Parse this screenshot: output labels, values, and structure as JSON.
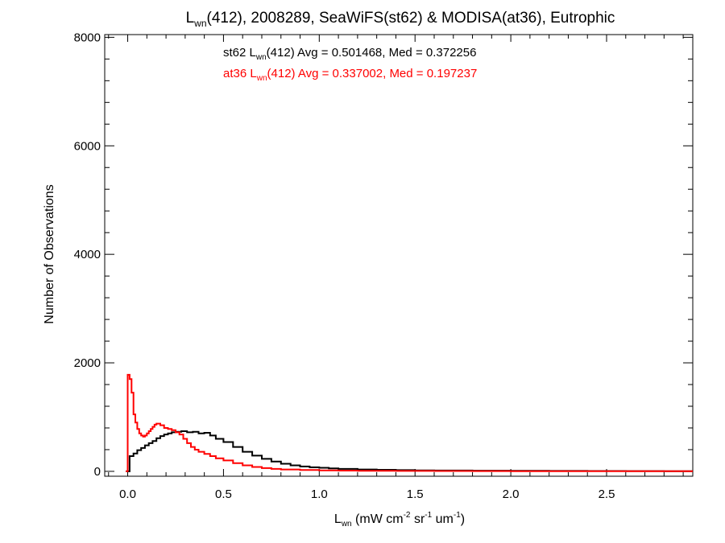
{
  "chart_data": {
    "type": "line",
    "title": {
      "main": "L",
      "sub": "wn",
      "rest": "(412), 2008289, SeaWiFS(st62) & MODISA(at36), Eutrophic"
    },
    "xlabel": {
      "main": "L",
      "sub": "wn",
      "p1": " (mW cm",
      "sup1": "-2",
      "p2": " sr",
      "sup2": "-1",
      "p3": " um",
      "sup3": "-1",
      "p4": ")"
    },
    "ylabel": "Number of Observations",
    "xlim": [
      -0.12,
      2.95
    ],
    "ylim": [
      -90,
      8050
    ],
    "x_ticks": [
      0.0,
      0.5,
      1.0,
      1.5,
      2.0,
      2.5
    ],
    "x_tick_labels": [
      "0.0",
      "0.5",
      "1.0",
      "1.5",
      "2.0",
      "2.5"
    ],
    "y_ticks": [
      0,
      2000,
      4000,
      6000,
      8000
    ],
    "y_tick_labels": [
      "0",
      "2000",
      "4000",
      "6000",
      "8000"
    ],
    "grid": false,
    "series": [
      {
        "name": "st62",
        "color": "#000000",
        "annotation": {
          "pre": "st62 L",
          "sub": "wn",
          "post": "(412) Avg = 0.501468, Med = 0.372256"
        },
        "points": [
          [
            -0.01,
            0
          ],
          [
            0.0,
            0
          ],
          [
            0.01,
            280
          ],
          [
            0.03,
            330
          ],
          [
            0.05,
            390
          ],
          [
            0.07,
            430
          ],
          [
            0.09,
            480
          ],
          [
            0.11,
            520
          ],
          [
            0.13,
            560
          ],
          [
            0.15,
            610
          ],
          [
            0.17,
            650
          ],
          [
            0.19,
            680
          ],
          [
            0.21,
            700
          ],
          [
            0.23,
            720
          ],
          [
            0.25,
            730
          ],
          [
            0.28,
            740
          ],
          [
            0.31,
            720
          ],
          [
            0.34,
            730
          ],
          [
            0.37,
            700
          ],
          [
            0.4,
            710
          ],
          [
            0.43,
            660
          ],
          [
            0.46,
            600
          ],
          [
            0.5,
            540
          ],
          [
            0.55,
            450
          ],
          [
            0.6,
            360
          ],
          [
            0.65,
            290
          ],
          [
            0.7,
            230
          ],
          [
            0.75,
            180
          ],
          [
            0.8,
            140
          ],
          [
            0.85,
            110
          ],
          [
            0.9,
            90
          ],
          [
            0.95,
            75
          ],
          [
            1.0,
            65
          ],
          [
            1.05,
            55
          ],
          [
            1.1,
            45
          ],
          [
            1.2,
            35
          ],
          [
            1.3,
            28
          ],
          [
            1.4,
            22
          ],
          [
            1.5,
            18
          ],
          [
            1.6,
            15
          ],
          [
            1.8,
            12
          ],
          [
            2.0,
            10
          ],
          [
            2.2,
            8
          ],
          [
            2.4,
            6
          ],
          [
            2.6,
            5
          ],
          [
            2.8,
            4
          ],
          [
            2.94,
            3
          ]
        ]
      },
      {
        "name": "at36",
        "color": "#ff0000",
        "annotation": {
          "pre": "at36 L",
          "sub": "wn",
          "post": "(412) Avg = 0.337002, Med = 0.197237"
        },
        "points": [
          [
            -0.01,
            0
          ],
          [
            0.0,
            1780
          ],
          [
            0.01,
            1700
          ],
          [
            0.02,
            1450
          ],
          [
            0.03,
            1050
          ],
          [
            0.04,
            900
          ],
          [
            0.05,
            780
          ],
          [
            0.06,
            700
          ],
          [
            0.07,
            660
          ],
          [
            0.08,
            640
          ],
          [
            0.09,
            660
          ],
          [
            0.1,
            700
          ],
          [
            0.11,
            740
          ],
          [
            0.12,
            780
          ],
          [
            0.13,
            820
          ],
          [
            0.14,
            860
          ],
          [
            0.15,
            880
          ],
          [
            0.17,
            850
          ],
          [
            0.19,
            800
          ],
          [
            0.21,
            780
          ],
          [
            0.23,
            760
          ],
          [
            0.25,
            720
          ],
          [
            0.27,
            680
          ],
          [
            0.29,
            600
          ],
          [
            0.31,
            520
          ],
          [
            0.33,
            450
          ],
          [
            0.35,
            400
          ],
          [
            0.37,
            360
          ],
          [
            0.4,
            320
          ],
          [
            0.43,
            280
          ],
          [
            0.46,
            240
          ],
          [
            0.5,
            200
          ],
          [
            0.55,
            150
          ],
          [
            0.6,
            110
          ],
          [
            0.65,
            80
          ],
          [
            0.7,
            60
          ],
          [
            0.75,
            45
          ],
          [
            0.8,
            35
          ],
          [
            0.9,
            25
          ],
          [
            1.0,
            18
          ],
          [
            1.1,
            14
          ],
          [
            1.2,
            10
          ],
          [
            1.4,
            8
          ],
          [
            1.6,
            6
          ],
          [
            1.8,
            5
          ],
          [
            2.0,
            4
          ],
          [
            2.3,
            3
          ],
          [
            2.6,
            3
          ],
          [
            2.94,
            2
          ]
        ]
      }
    ]
  }
}
